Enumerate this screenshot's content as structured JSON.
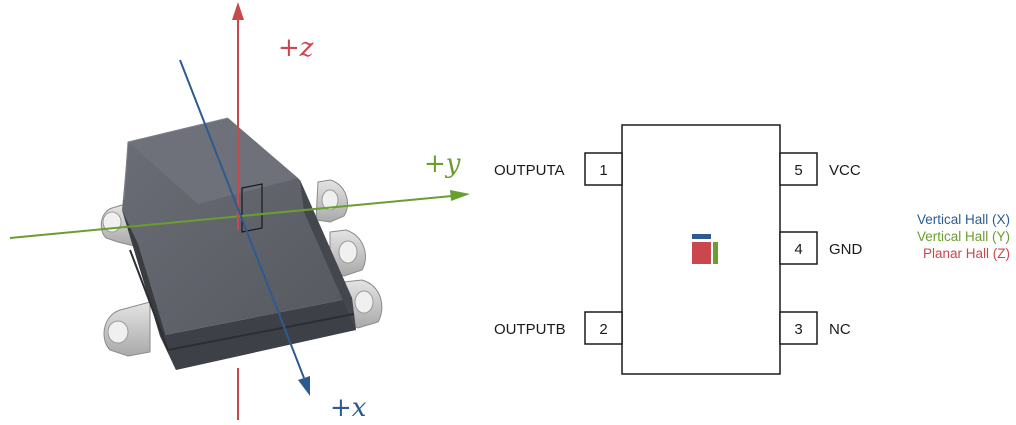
{
  "axes": {
    "z_label": "+z",
    "y_label": "+y",
    "x_label": "+x"
  },
  "pins": [
    {
      "number": "1",
      "name": "OUTPUTA"
    },
    {
      "number": "2",
      "name": "OUTPUTB"
    },
    {
      "number": "3",
      "name": "NC"
    },
    {
      "number": "4",
      "name": "GND"
    },
    {
      "number": "5",
      "name": "VCC"
    }
  ],
  "legend": [
    {
      "label": "Vertical Hall (X)",
      "color": "#2e5b8f"
    },
    {
      "label": "Vertical Hall (Y)",
      "color": "#6a9e2f"
    },
    {
      "label": "Planar Hall (Z)",
      "color": "#c9474d"
    }
  ],
  "colors": {
    "z_axis": "#c9474d",
    "y_axis": "#6a9e2f",
    "x_axis": "#2e5b8f",
    "package_body": "#4a4d55"
  }
}
